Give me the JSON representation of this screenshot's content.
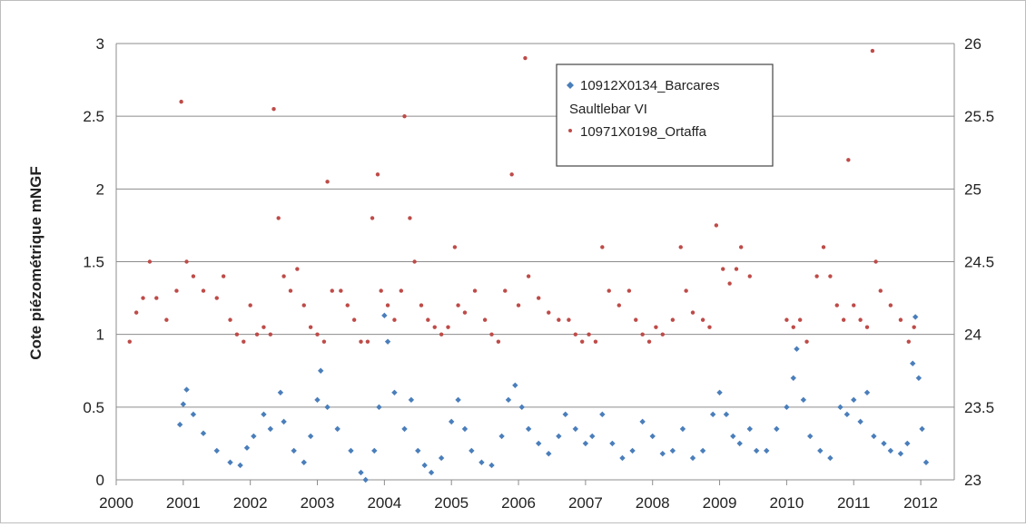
{
  "chart_data": {
    "type": "scatter",
    "title": "",
    "xlabel": "",
    "ylabel": "Cote piézométrique mNGF",
    "x_range": [
      2000,
      2012.5
    ],
    "x_ticks": [
      "2000",
      "2001",
      "2002",
      "2003",
      "2004",
      "2005",
      "2006",
      "2007",
      "2008",
      "2009",
      "2010",
      "2011",
      "2012"
    ],
    "y_left_range": [
      0,
      3
    ],
    "y_left_ticks": [
      "0",
      "0.5",
      "1",
      "1.5",
      "2",
      "2.5",
      "3"
    ],
    "y_right_range": [
      23,
      26
    ],
    "y_right_ticks": [
      "23",
      "23.5",
      "24",
      "24.5",
      "25",
      "25.5",
      "26"
    ],
    "grid": "horizontal",
    "legend_position": "top-center",
    "series": [
      {
        "name": "10912X0134_Barcares Saultlebar VI",
        "axis": "left",
        "color": "#4a7ebb",
        "marker": "diamond",
        "points": [
          [
            2000.95,
            0.38
          ],
          [
            2001.0,
            0.52
          ],
          [
            2001.05,
            0.62
          ],
          [
            2001.15,
            0.45
          ],
          [
            2001.3,
            0.32
          ],
          [
            2001.5,
            0.2
          ],
          [
            2001.7,
            0.12
          ],
          [
            2001.85,
            0.1
          ],
          [
            2001.95,
            0.22
          ],
          [
            2002.05,
            0.3
          ],
          [
            2002.2,
            0.45
          ],
          [
            2002.3,
            0.35
          ],
          [
            2002.45,
            0.6
          ],
          [
            2002.5,
            0.4
          ],
          [
            2002.65,
            0.2
          ],
          [
            2002.8,
            0.12
          ],
          [
            2002.9,
            0.3
          ],
          [
            2003.0,
            0.55
          ],
          [
            2003.05,
            0.75
          ],
          [
            2003.15,
            0.5
          ],
          [
            2003.3,
            0.35
          ],
          [
            2003.5,
            0.2
          ],
          [
            2003.65,
            0.05
          ],
          [
            2003.72,
            0.0
          ],
          [
            2003.85,
            0.2
          ],
          [
            2003.92,
            0.5
          ],
          [
            2004.0,
            1.13
          ],
          [
            2004.05,
            0.95
          ],
          [
            2004.15,
            0.6
          ],
          [
            2004.3,
            0.35
          ],
          [
            2004.4,
            0.55
          ],
          [
            2004.5,
            0.2
          ],
          [
            2004.6,
            0.1
          ],
          [
            2004.7,
            0.05
          ],
          [
            2004.85,
            0.15
          ],
          [
            2005.0,
            0.4
          ],
          [
            2005.1,
            0.55
          ],
          [
            2005.2,
            0.35
          ],
          [
            2005.3,
            0.2
          ],
          [
            2005.45,
            0.12
          ],
          [
            2005.6,
            0.1
          ],
          [
            2005.75,
            0.3
          ],
          [
            2005.85,
            0.55
          ],
          [
            2005.95,
            0.65
          ],
          [
            2006.05,
            0.5
          ],
          [
            2006.15,
            0.35
          ],
          [
            2006.3,
            0.25
          ],
          [
            2006.45,
            0.18
          ],
          [
            2006.6,
            0.3
          ],
          [
            2006.7,
            0.45
          ],
          [
            2006.85,
            0.35
          ],
          [
            2007.0,
            0.25
          ],
          [
            2007.1,
            0.3
          ],
          [
            2007.25,
            0.45
          ],
          [
            2007.4,
            0.25
          ],
          [
            2007.55,
            0.15
          ],
          [
            2007.7,
            0.2
          ],
          [
            2007.85,
            0.4
          ],
          [
            2008.0,
            0.3
          ],
          [
            2008.15,
            0.18
          ],
          [
            2008.3,
            0.2
          ],
          [
            2008.45,
            0.35
          ],
          [
            2008.6,
            0.15
          ],
          [
            2008.75,
            0.2
          ],
          [
            2008.9,
            0.45
          ],
          [
            2009.0,
            0.6
          ],
          [
            2009.1,
            0.45
          ],
          [
            2009.2,
            0.3
          ],
          [
            2009.3,
            0.25
          ],
          [
            2009.45,
            0.35
          ],
          [
            2009.55,
            0.2
          ],
          [
            2009.7,
            0.2
          ],
          [
            2009.85,
            0.35
          ],
          [
            2010.0,
            0.5
          ],
          [
            2010.1,
            0.7
          ],
          [
            2010.15,
            0.9
          ],
          [
            2010.25,
            0.55
          ],
          [
            2010.35,
            0.3
          ],
          [
            2010.5,
            0.2
          ],
          [
            2010.65,
            0.15
          ],
          [
            2010.8,
            0.5
          ],
          [
            2010.9,
            0.45
          ],
          [
            2011.0,
            0.55
          ],
          [
            2011.1,
            0.4
          ],
          [
            2011.2,
            0.6
          ],
          [
            2011.3,
            0.3
          ],
          [
            2011.45,
            0.25
          ],
          [
            2011.55,
            0.2
          ],
          [
            2011.7,
            0.18
          ],
          [
            2011.8,
            0.25
          ],
          [
            2011.88,
            0.8
          ],
          [
            2011.92,
            1.12
          ],
          [
            2011.97,
            0.7
          ],
          [
            2012.02,
            0.35
          ],
          [
            2012.08,
            0.12
          ]
        ]
      },
      {
        "name": "10971X0198_Ortaffa",
        "axis": "right",
        "color": "#be4b48",
        "marker": "circle",
        "points": [
          [
            2000.2,
            23.95
          ],
          [
            2000.3,
            24.15
          ],
          [
            2000.4,
            24.25
          ],
          [
            2000.5,
            24.5
          ],
          [
            2000.6,
            24.25
          ],
          [
            2000.75,
            24.1
          ],
          [
            2000.9,
            24.3
          ],
          [
            2000.97,
            25.6
          ],
          [
            2001.05,
            24.5
          ],
          [
            2001.15,
            24.4
          ],
          [
            2001.3,
            24.3
          ],
          [
            2001.5,
            24.25
          ],
          [
            2001.6,
            24.4
          ],
          [
            2001.7,
            24.1
          ],
          [
            2001.8,
            24.0
          ],
          [
            2001.9,
            23.95
          ],
          [
            2002.0,
            24.2
          ],
          [
            2002.1,
            24.0
          ],
          [
            2002.2,
            24.05
          ],
          [
            2002.3,
            24.0
          ],
          [
            2002.35,
            25.55
          ],
          [
            2002.42,
            24.8
          ],
          [
            2002.5,
            24.4
          ],
          [
            2002.6,
            24.3
          ],
          [
            2002.7,
            24.45
          ],
          [
            2002.8,
            24.2
          ],
          [
            2002.9,
            24.05
          ],
          [
            2003.0,
            24.0
          ],
          [
            2003.1,
            23.95
          ],
          [
            2003.15,
            25.05
          ],
          [
            2003.22,
            24.3
          ],
          [
            2003.35,
            24.3
          ],
          [
            2003.45,
            24.2
          ],
          [
            2003.55,
            24.1
          ],
          [
            2003.65,
            23.95
          ],
          [
            2003.75,
            23.95
          ],
          [
            2003.82,
            24.8
          ],
          [
            2003.9,
            25.1
          ],
          [
            2003.95,
            24.3
          ],
          [
            2004.05,
            24.2
          ],
          [
            2004.15,
            24.1
          ],
          [
            2004.25,
            24.3
          ],
          [
            2004.3,
            25.5
          ],
          [
            2004.38,
            24.8
          ],
          [
            2004.45,
            24.5
          ],
          [
            2004.55,
            24.2
          ],
          [
            2004.65,
            24.1
          ],
          [
            2004.75,
            24.05
          ],
          [
            2004.85,
            24.0
          ],
          [
            2004.95,
            24.05
          ],
          [
            2005.05,
            24.6
          ],
          [
            2005.1,
            24.2
          ],
          [
            2005.2,
            24.15
          ],
          [
            2005.35,
            24.3
          ],
          [
            2005.5,
            24.1
          ],
          [
            2005.6,
            24.0
          ],
          [
            2005.7,
            23.95
          ],
          [
            2005.8,
            24.3
          ],
          [
            2005.9,
            25.1
          ],
          [
            2006.0,
            24.2
          ],
          [
            2006.1,
            25.9
          ],
          [
            2006.15,
            24.4
          ],
          [
            2006.3,
            24.25
          ],
          [
            2006.45,
            24.15
          ],
          [
            2006.6,
            24.1
          ],
          [
            2006.75,
            24.1
          ],
          [
            2006.85,
            24.0
          ],
          [
            2006.95,
            23.95
          ],
          [
            2007.05,
            24.0
          ],
          [
            2007.15,
            23.95
          ],
          [
            2007.25,
            24.6
          ],
          [
            2007.35,
            24.3
          ],
          [
            2007.5,
            24.2
          ],
          [
            2007.65,
            24.3
          ],
          [
            2007.75,
            24.1
          ],
          [
            2007.85,
            24.0
          ],
          [
            2007.95,
            23.95
          ],
          [
            2008.05,
            24.05
          ],
          [
            2008.15,
            24.0
          ],
          [
            2008.3,
            24.1
          ],
          [
            2008.42,
            24.6
          ],
          [
            2008.5,
            24.3
          ],
          [
            2008.6,
            24.15
          ],
          [
            2008.75,
            24.1
          ],
          [
            2008.85,
            24.05
          ],
          [
            2008.95,
            24.75
          ],
          [
            2009.05,
            24.45
          ],
          [
            2009.15,
            24.35
          ],
          [
            2009.25,
            24.45
          ],
          [
            2009.32,
            24.6
          ],
          [
            2009.45,
            24.4
          ],
          [
            2010.0,
            24.1
          ],
          [
            2010.1,
            24.05
          ],
          [
            2010.2,
            24.1
          ],
          [
            2010.3,
            23.95
          ],
          [
            2010.45,
            24.4
          ],
          [
            2010.55,
            24.6
          ],
          [
            2010.65,
            24.4
          ],
          [
            2010.75,
            24.2
          ],
          [
            2010.85,
            24.1
          ],
          [
            2010.92,
            25.2
          ],
          [
            2011.0,
            24.2
          ],
          [
            2011.1,
            24.1
          ],
          [
            2011.2,
            24.05
          ],
          [
            2011.28,
            25.95
          ],
          [
            2011.33,
            24.5
          ],
          [
            2011.4,
            24.3
          ],
          [
            2011.55,
            24.2
          ],
          [
            2011.7,
            24.1
          ],
          [
            2011.82,
            23.95
          ],
          [
            2011.9,
            24.05
          ]
        ]
      }
    ]
  },
  "legend": {
    "series1_line1": "10912X0134_Barcares",
    "series1_line2": "Saultlebar VI",
    "series2": "10971X0198_Ortaffa"
  }
}
